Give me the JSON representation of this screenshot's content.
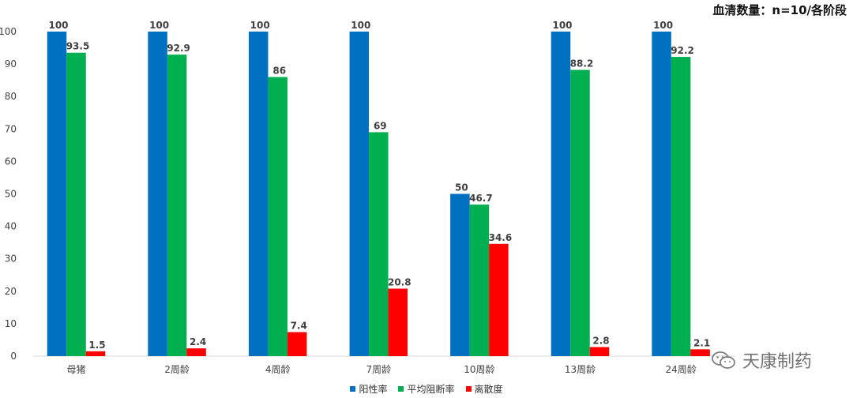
{
  "note": "血清数量：n=10/各阶段",
  "watermark": "天康制药",
  "colors": {
    "positive": "#0070c0",
    "inhibition": "#00b050",
    "dispersion": "#ff0000"
  },
  "chart_data": {
    "type": "bar",
    "categories": [
      "母猪",
      "2周龄",
      "4周龄",
      "7周龄",
      "10周龄",
      "13周龄",
      "24周龄"
    ],
    "series": [
      {
        "name": "阳性率",
        "values": [
          100,
          100,
          100,
          100,
          50,
          100,
          100
        ]
      },
      {
        "name": "平均阻断率",
        "values": [
          93.5,
          92.9,
          86,
          69,
          46.7,
          88.2,
          92.2
        ]
      },
      {
        "name": "离散度",
        "values": [
          1.5,
          2.4,
          7.4,
          20.8,
          34.6,
          2.8,
          2.1
        ]
      }
    ],
    "ylim": [
      0,
      100
    ],
    "yticks": [
      0,
      10,
      20,
      30,
      40,
      50,
      60,
      70,
      80,
      90,
      100
    ],
    "grid": false,
    "legend": "bottom"
  }
}
